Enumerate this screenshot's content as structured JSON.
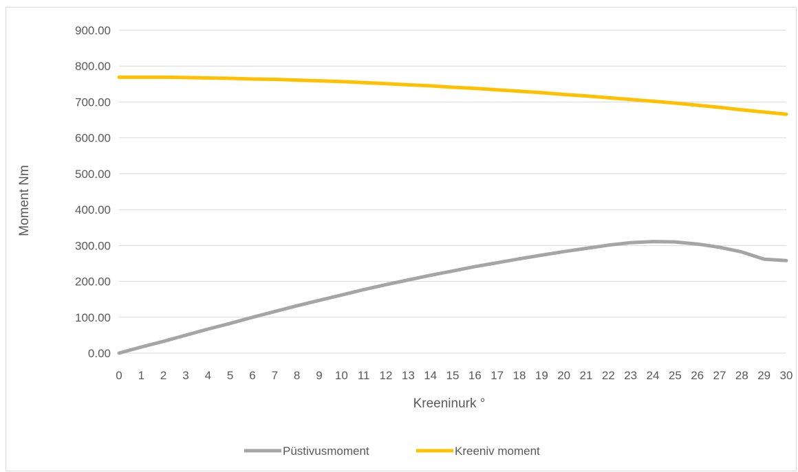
{
  "chart_data": {
    "type": "line",
    "title": "",
    "xlabel": "Kreeninurk °",
    "ylabel": "Moment Nm",
    "x": [
      0,
      1,
      2,
      3,
      4,
      5,
      6,
      7,
      8,
      9,
      10,
      11,
      12,
      13,
      14,
      15,
      16,
      17,
      18,
      19,
      20,
      21,
      22,
      23,
      24,
      25,
      26,
      27,
      28,
      29,
      30
    ],
    "ylim": [
      0,
      900
    ],
    "yticks": [
      "0.00",
      "100.00",
      "200.00",
      "300.00",
      "400.00",
      "500.00",
      "600.00",
      "700.00",
      "800.00",
      "900.00"
    ],
    "grid": "horizontal",
    "legend_position": "bottom",
    "series": [
      {
        "name": "Püstivusmoment",
        "color": "#a5a5a5",
        "values": [
          0,
          17,
          33,
          50,
          67,
          83,
          100,
          116,
          132,
          147,
          162,
          177,
          191,
          204,
          217,
          229,
          241,
          252,
          263,
          273,
          283,
          292,
          301,
          308,
          311,
          310,
          304,
          295,
          282,
          262,
          258
        ]
      },
      {
        "name": "Kreeniv moment",
        "color": "#ffc000",
        "values": [
          769,
          769,
          769,
          768,
          767,
          766,
          764,
          763,
          761,
          759,
          757,
          754,
          751,
          748,
          745,
          741,
          738,
          734,
          730,
          726,
          721,
          717,
          712,
          707,
          702,
          697,
          691,
          685,
          678,
          672,
          666
        ]
      }
    ]
  }
}
